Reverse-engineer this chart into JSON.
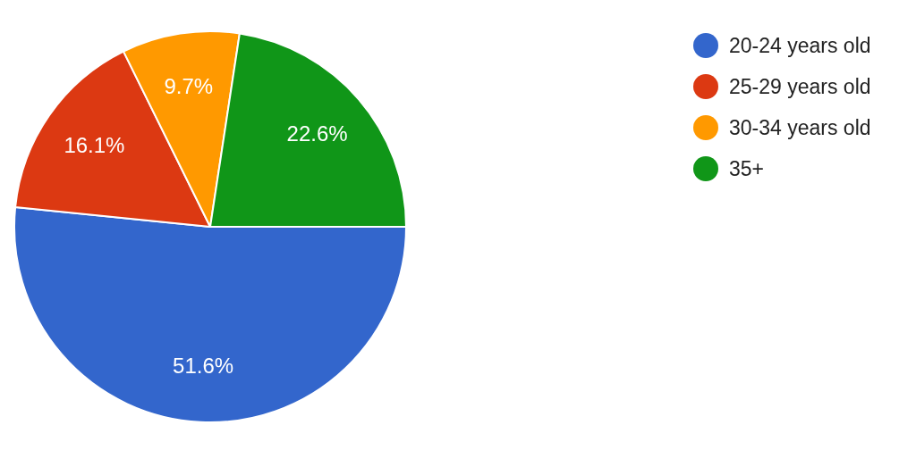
{
  "chart_data": {
    "type": "pie",
    "categories": [
      "20-24 years old",
      "25-29 years old",
      "30-34 years old",
      "35+"
    ],
    "values": [
      51.6,
      16.1,
      9.7,
      22.6
    ],
    "colors": [
      "#3366cc",
      "#dc3912",
      "#ff9900",
      "#109618"
    ],
    "value_labels": [
      "51.6%",
      "16.1%",
      "9.7%",
      "22.6%"
    ],
    "legend": "top right"
  }
}
